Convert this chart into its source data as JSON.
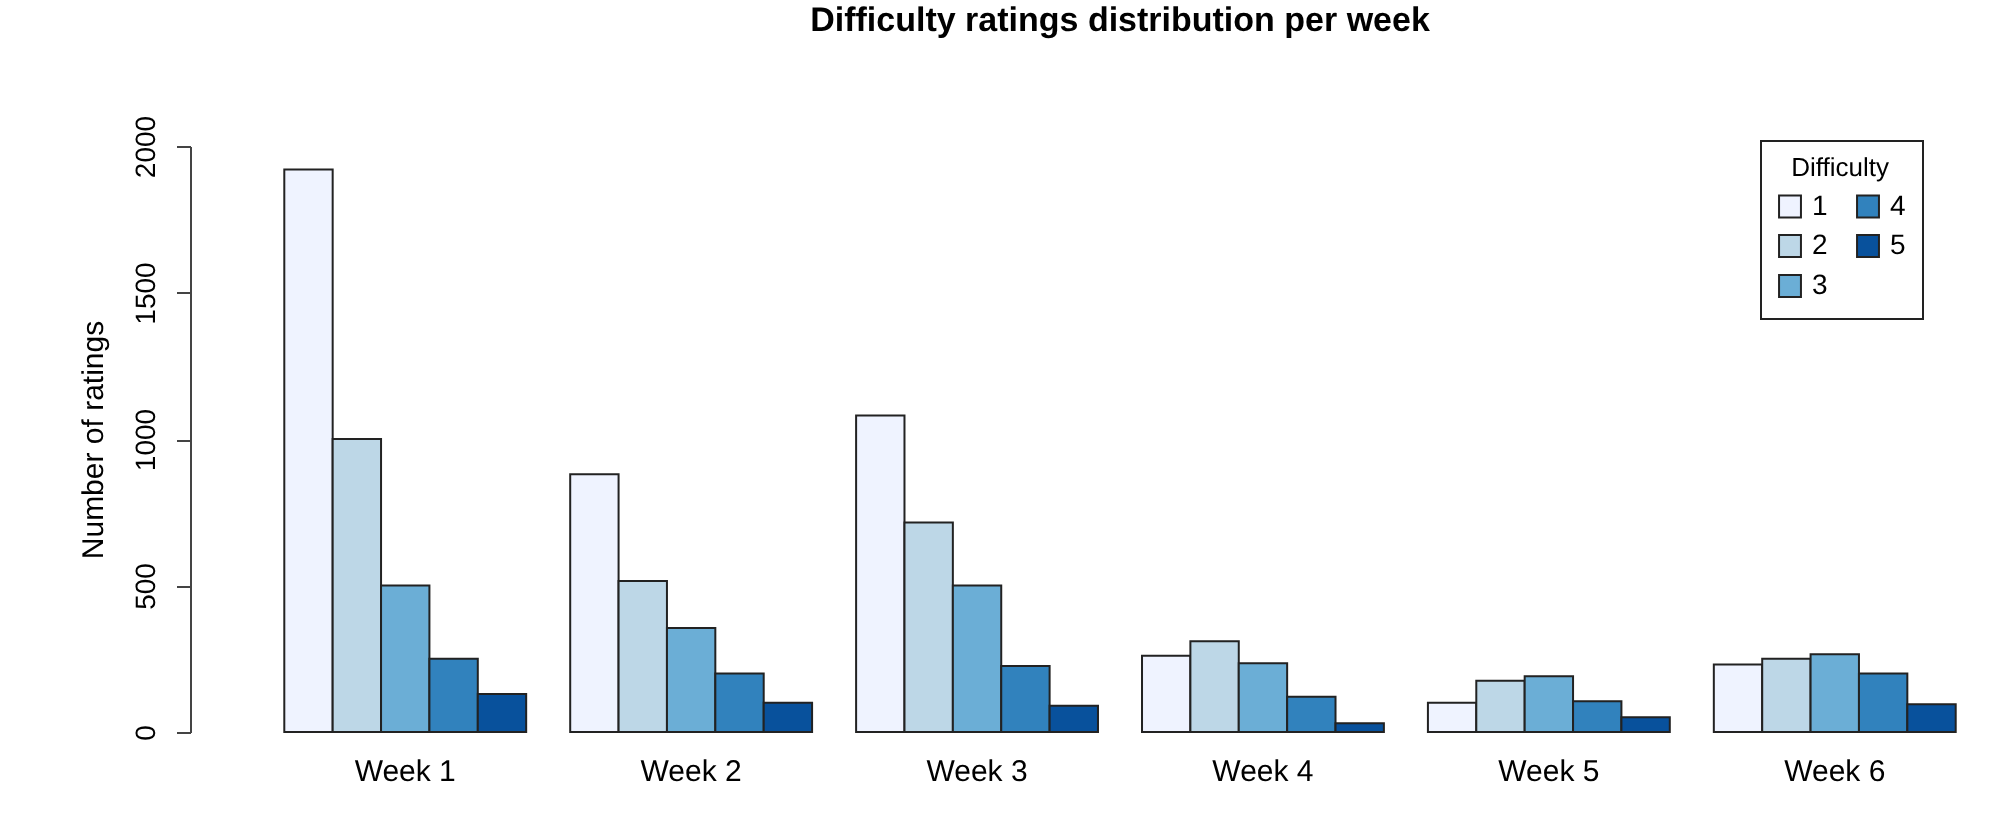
{
  "chart_data": {
    "type": "bar",
    "title": "Difficulty ratings distribution per week",
    "ylabel": "Number of ratings",
    "legend_title": "Difficulty",
    "categories": [
      "Week 1",
      "Week 2",
      "Week 3",
      "Week 4",
      "Week 5",
      "Week 6"
    ],
    "series": [
      {
        "name": "1",
        "color": "#eff3ff",
        "values": [
          1920,
          880,
          1080,
          260,
          100,
          230
        ]
      },
      {
        "name": "2",
        "color": "#bdd7e7",
        "values": [
          1000,
          515,
          715,
          310,
          175,
          250
        ]
      },
      {
        "name": "3",
        "color": "#6baed6",
        "values": [
          500,
          355,
          500,
          235,
          190,
          265
        ]
      },
      {
        "name": "4",
        "color": "#3182bd",
        "values": [
          250,
          200,
          225,
          120,
          105,
          200
        ]
      },
      {
        "name": "5",
        "color": "#08519c",
        "values": [
          130,
          100,
          90,
          30,
          50,
          95
        ]
      }
    ],
    "ylim": [
      0,
      2000
    ],
    "yticks": [
      0,
      500,
      1000,
      1500,
      2000
    ],
    "grid": false,
    "legend": "top right"
  }
}
